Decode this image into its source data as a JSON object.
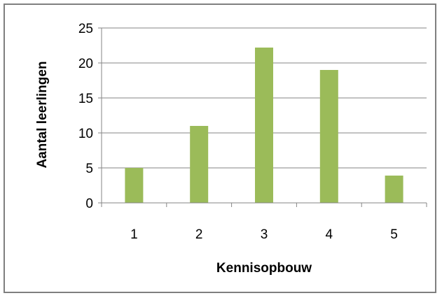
{
  "chart_data": {
    "type": "bar",
    "title": "",
    "xlabel": "Kennisopbouw",
    "ylabel": "Aantal leerlingen",
    "categories": [
      "1",
      "2",
      "3",
      "4",
      "5"
    ],
    "values": [
      5,
      11,
      22.2,
      19,
      3.9
    ],
    "ylim": [
      0,
      25
    ],
    "yticks": [
      "0",
      "5",
      "10",
      "15",
      "20",
      "25"
    ],
    "grid": true,
    "legend": "none",
    "bar_color": "#9bbb59",
    "gridline_color": "#868686"
  }
}
